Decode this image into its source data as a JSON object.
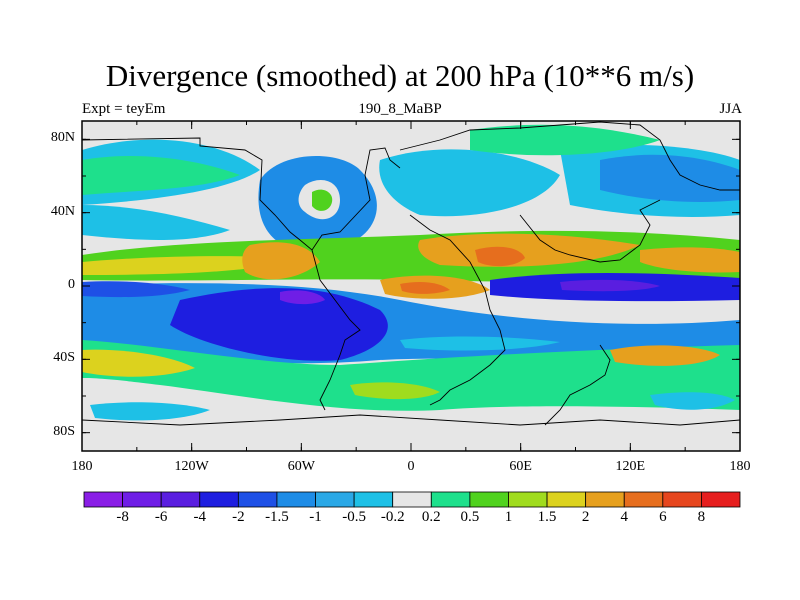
{
  "title": "Divergence (smoothed) at 200 hPa (10**6 m/s)",
  "subtitle_left": "Expt = teyEm",
  "subtitle_center": "190_8_MaBP",
  "subtitle_right": "JJA",
  "lat_labels": [
    "80N",
    "40N",
    "0",
    "40S",
    "80S"
  ],
  "lat_values": [
    80,
    40,
    0,
    -40,
    -80
  ],
  "lon_labels": [
    "180",
    "120W",
    "60W",
    "0",
    "60E",
    "120E",
    "180"
  ],
  "lon_values": [
    -180,
    -120,
    -60,
    0,
    60,
    120,
    180
  ],
  "colorbar": {
    "labels": [
      "-8",
      "-6",
      "-4",
      "-2",
      "-1.5",
      "-1",
      "-0.5",
      "-0.2",
      "0.2",
      "0.5",
      "1",
      "1.5",
      "2",
      "4",
      "6",
      "8"
    ],
    "colors": [
      "#8a1ee6",
      "#6f1ee6",
      "#5a1ee0",
      "#1e1ee0",
      "#1e50e6",
      "#1e8ce6",
      "#2aa8e6",
      "#1ec0e6",
      "#e6e6e6",
      "#1ee08c",
      "#50d21e",
      "#a0dc1e",
      "#dcd21e",
      "#e6a01e",
      "#e66e1e",
      "#e6461e",
      "#e61e1e"
    ]
  },
  "colors": {
    "frame": "#000000",
    "coast": "#000000",
    "background_field": "#e6e6e6"
  }
}
